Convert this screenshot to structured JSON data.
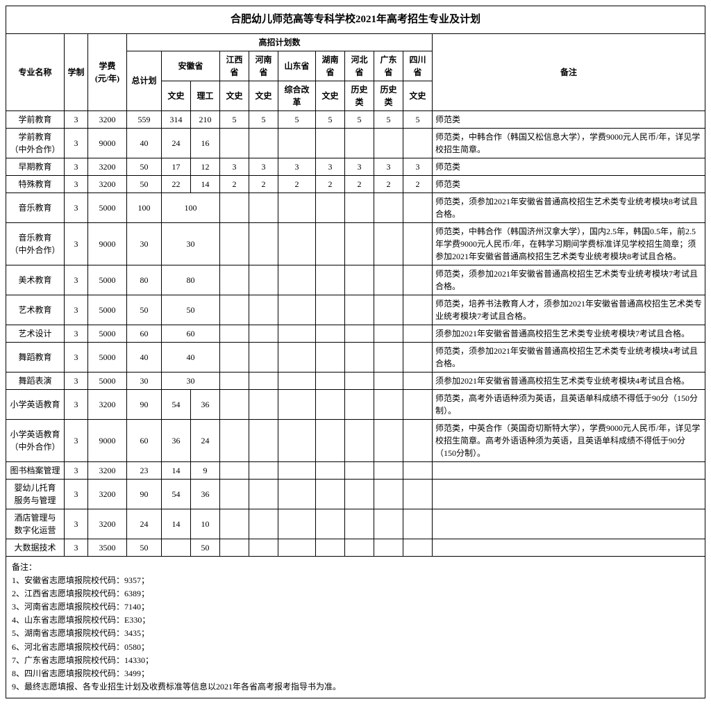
{
  "title": "合肥幼儿师范高等专科学校2021年高考招生专业及计划",
  "headers": {
    "major": "专业名称",
    "years": "学制",
    "fee": "学费\n(元/年)",
    "plan_group": "高招计划数",
    "total": "总计划",
    "anhui": "安徽省",
    "jiangxi": "江西省",
    "henan": "河南省",
    "shandong": "山东省",
    "hunan": "湖南省",
    "hebei": "河北省",
    "guangdong": "广东省",
    "sichuan": "四川省",
    "wenshi": "文史",
    "ligong": "理工",
    "zhgg": "综合改革",
    "lishi": "历史类",
    "remarks": "备注"
  },
  "rows": [
    {
      "name": "学前教育",
      "yrs": "3",
      "fee": "3200",
      "tot": "559",
      "ah_w": "314",
      "ah_l": "210",
      "jx": "5",
      "hn": "5",
      "sd": "5",
      "hun": "5",
      "hb": "5",
      "gd": "5",
      "sc": "5",
      "bz": "师范类",
      "span": false
    },
    {
      "name": "学前教育\n（中外合作）",
      "yrs": "3",
      "fee": "9000",
      "tot": "40",
      "ah_w": "24",
      "ah_l": "16",
      "jx": "",
      "hn": "",
      "sd": "",
      "hun": "",
      "hb": "",
      "gd": "",
      "sc": "",
      "bz": "师范类，中韩合作（韩国又松信息大学），学费9000元人民币/年，详见学校招生简章。",
      "span": false
    },
    {
      "name": "早期教育",
      "yrs": "3",
      "fee": "3200",
      "tot": "50",
      "ah_w": "17",
      "ah_l": "12",
      "jx": "3",
      "hn": "3",
      "sd": "3",
      "hun": "3",
      "hb": "3",
      "gd": "3",
      "sc": "3",
      "bz": "师范类",
      "span": false
    },
    {
      "name": "特殊教育",
      "yrs": "3",
      "fee": "3200",
      "tot": "50",
      "ah_w": "22",
      "ah_l": "14",
      "jx": "2",
      "hn": "2",
      "sd": "2",
      "hun": "2",
      "hb": "2",
      "gd": "2",
      "sc": "2",
      "bz": "师范类",
      "span": false
    },
    {
      "name": "音乐教育",
      "yrs": "3",
      "fee": "5000",
      "tot": "100",
      "ah_w": "100",
      "ah_l": "",
      "jx": "",
      "hn": "",
      "sd": "",
      "hun": "",
      "hb": "",
      "gd": "",
      "sc": "",
      "bz": "师范类，须参加2021年安徽省普通高校招生艺术类专业统考模块8考试且合格。",
      "span": true
    },
    {
      "name": "音乐教育\n（中外合作）",
      "yrs": "3",
      "fee": "9000",
      "tot": "30",
      "ah_w": "30",
      "ah_l": "",
      "jx": "",
      "hn": "",
      "sd": "",
      "hun": "",
      "hb": "",
      "gd": "",
      "sc": "",
      "bz": "师范类，中韩合作（韩国济州汉拿大学），国内2.5年，韩国0.5年，前2.5年学费9000元人民币/年，在韩学习期间学费标准详见学校招生简章；须参加2021年安徽省普通高校招生艺术类专业统考模块8考试且合格。",
      "span": true
    },
    {
      "name": "美术教育",
      "yrs": "3",
      "fee": "5000",
      "tot": "80",
      "ah_w": "80",
      "ah_l": "",
      "jx": "",
      "hn": "",
      "sd": "",
      "hun": "",
      "hb": "",
      "gd": "",
      "sc": "",
      "bz": "师范类，须参加2021年安徽省普通高校招生艺术类专业统考模块7考试且合格。",
      "span": true
    },
    {
      "name": "艺术教育",
      "yrs": "3",
      "fee": "5000",
      "tot": "50",
      "ah_w": "50",
      "ah_l": "",
      "jx": "",
      "hn": "",
      "sd": "",
      "hun": "",
      "hb": "",
      "gd": "",
      "sc": "",
      "bz": "师范类，培养书法教育人才，须参加2021年安徽省普通高校招生艺术类专业统考模块7考试且合格。",
      "span": true
    },
    {
      "name": "艺术设计",
      "yrs": "3",
      "fee": "5000",
      "tot": "60",
      "ah_w": "60",
      "ah_l": "",
      "jx": "",
      "hn": "",
      "sd": "",
      "hun": "",
      "hb": "",
      "gd": "",
      "sc": "",
      "bz": "须参加2021年安徽省普通高校招生艺术类专业统考模块7考试且合格。",
      "span": true
    },
    {
      "name": "舞蹈教育",
      "yrs": "3",
      "fee": "5000",
      "tot": "40",
      "ah_w": "40",
      "ah_l": "",
      "jx": "",
      "hn": "",
      "sd": "",
      "hun": "",
      "hb": "",
      "gd": "",
      "sc": "",
      "bz": "师范类，须参加2021年安徽省普通高校招生艺术类专业统考模块4考试且合格。",
      "span": true
    },
    {
      "name": "舞蹈表演",
      "yrs": "3",
      "fee": "5000",
      "tot": "30",
      "ah_w": "30",
      "ah_l": "",
      "jx": "",
      "hn": "",
      "sd": "",
      "hun": "",
      "hb": "",
      "gd": "",
      "sc": "",
      "bz": "须参加2021年安徽省普通高校招生艺术类专业统考模块4考试且合格。",
      "span": true
    },
    {
      "name": "小学英语教育",
      "yrs": "3",
      "fee": "3200",
      "tot": "90",
      "ah_w": "54",
      "ah_l": "36",
      "jx": "",
      "hn": "",
      "sd": "",
      "hun": "",
      "hb": "",
      "gd": "",
      "sc": "",
      "bz": "师范类，高考外语语种须为英语，且英语单科成绩不得低于90分（150分制）。",
      "span": false
    },
    {
      "name": "小学英语教育\n（中外合作）",
      "yrs": "3",
      "fee": "9000",
      "tot": "60",
      "ah_w": "36",
      "ah_l": "24",
      "jx": "",
      "hn": "",
      "sd": "",
      "hun": "",
      "hb": "",
      "gd": "",
      "sc": "",
      "bz": "师范类，中英合作（英国奇切斯特大学），学费9000元人民币/年，详见学校招生简章。高考外语语种须为英语，且英语单科成绩不得低于90分（150分制）。",
      "span": false
    },
    {
      "name": "图书档案管理",
      "yrs": "3",
      "fee": "3200",
      "tot": "23",
      "ah_w": "14",
      "ah_l": "9",
      "jx": "",
      "hn": "",
      "sd": "",
      "hun": "",
      "hb": "",
      "gd": "",
      "sc": "",
      "bz": "",
      "span": false
    },
    {
      "name": "婴幼儿托育\n服务与管理",
      "yrs": "3",
      "fee": "3200",
      "tot": "90",
      "ah_w": "54",
      "ah_l": "36",
      "jx": "",
      "hn": "",
      "sd": "",
      "hun": "",
      "hb": "",
      "gd": "",
      "sc": "",
      "bz": "",
      "span": false
    },
    {
      "name": "酒店管理与\n数字化运营",
      "yrs": "3",
      "fee": "3200",
      "tot": "24",
      "ah_w": "14",
      "ah_l": "10",
      "jx": "",
      "hn": "",
      "sd": "",
      "hun": "",
      "hb": "",
      "gd": "",
      "sc": "",
      "bz": "",
      "span": false
    },
    {
      "name": "大数据技术",
      "yrs": "3",
      "fee": "3500",
      "tot": "50",
      "ah_w": "",
      "ah_l": "50",
      "jx": "",
      "hn": "",
      "sd": "",
      "hun": "",
      "hb": "",
      "gd": "",
      "sc": "",
      "bz": "",
      "span": false
    }
  ],
  "notes_title": "备注：",
  "notes": [
    "1、安徽省志愿填报院校代码：9357；",
    "2、江西省志愿填报院校代码：6389；",
    "3、河南省志愿填报院校代码：7140；",
    "4、山东省志愿填报院校代码：E330；",
    "5、湖南省志愿填报院校代码：3435；",
    "6、河北省志愿填报院校代码：0580；",
    "7、广东省志愿填报院校代码：14330；",
    "8、四川省志愿填报院校代码：3499；",
    "9、最终志愿填报、各专业招生计划及收费标准等信息以2021年各省高考报考指导书为准。"
  ]
}
